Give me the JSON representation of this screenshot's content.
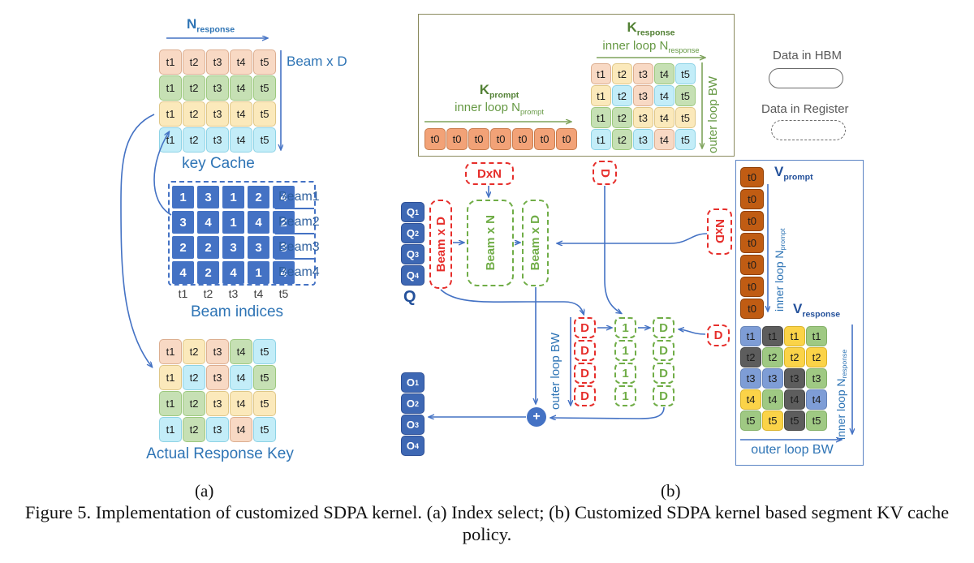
{
  "figure": {
    "caption": "Figure 5. Implementation of customized SDPA kernel. (a) Index select; (b) Customized SDPA kernel based segment KV cache policy.",
    "sub_a": "(a)",
    "sub_b": "(b)"
  },
  "legend": {
    "hbm_label": "Data in HBM",
    "register_label": "Data in Register"
  },
  "cell_palette": {
    "peach": {
      "bg": "#F8D9C4",
      "bd": "#DCAE90"
    },
    "lgreen": {
      "bg": "#C6E0B4",
      "bd": "#9CC87E"
    },
    "cream": {
      "bg": "#FBE9BB",
      "bd": "#DFC788"
    },
    "cyan": {
      "bg": "#C3EDF8",
      "bd": "#8ED3E6"
    },
    "korange": {
      "bg": "#F2A277",
      "bd": "#C87C4E"
    },
    "vorange": {
      "bg": "#C05C13",
      "bd": "#8F3F05"
    },
    "vblue": {
      "bg": "#7E9DD6",
      "bd": "#6583B8"
    },
    "vgray": {
      "bg": "#5D5D5D",
      "bd": "#474747"
    },
    "vyellow": {
      "bg": "#FBD348",
      "bd": "#D9B32A"
    },
    "vgreen": {
      "bg": "#9FC983",
      "bd": "#82AF66"
    }
  },
  "part_a": {
    "n_response": {
      "base": "N",
      "sub": "response"
    },
    "beam_x_d": "Beam x D",
    "key_cache": {
      "title": "key Cache",
      "cell_labels": [
        "t1",
        "t2",
        "t3",
        "t4",
        "t5"
      ],
      "row_colors": [
        "peach",
        "lgreen",
        "cream",
        "cyan"
      ]
    },
    "beam_indices": {
      "title": "Beam indices",
      "rows": [
        [
          1,
          3,
          1,
          2,
          4
        ],
        [
          3,
          4,
          1,
          4,
          2
        ],
        [
          2,
          2,
          3,
          3,
          3
        ],
        [
          4,
          2,
          4,
          1,
          4
        ]
      ],
      "row_labels": [
        "Beam1",
        "Beam2",
        "Beam3",
        "Beam4"
      ],
      "col_labels": [
        "t1",
        "t2",
        "t3",
        "t4",
        "t5"
      ]
    },
    "actual_response_key": {
      "title": "Actual Response Key",
      "cell_labels": [
        "t1",
        "t2",
        "t3",
        "t4",
        "t5"
      ],
      "cell_colors": [
        [
          "peach",
          "cream",
          "peach",
          "lgreen",
          "cyan"
        ],
        [
          "cream",
          "cyan",
          "peach",
          "cyan",
          "lgreen"
        ],
        [
          "lgreen",
          "lgreen",
          "cream",
          "cream",
          "cream"
        ],
        [
          "cyan",
          "lgreen",
          "cyan",
          "peach",
          "cyan"
        ]
      ]
    }
  },
  "part_b": {
    "k_prompt": {
      "label": {
        "base": "K",
        "sub": "prompt"
      },
      "loop": {
        "base": "inner loop N",
        "sub": "prompt"
      },
      "cells": [
        "t0",
        "t0",
        "t0",
        "t0",
        "t0",
        "t0",
        "t0"
      ]
    },
    "k_response": {
      "label": {
        "base": "K",
        "sub": "response"
      },
      "loop": {
        "base": "inner loop N",
        "sub": "response"
      },
      "outer": "outer loop BW",
      "cell_labels": [
        "t1",
        "t2",
        "t3",
        "t4",
        "t5"
      ],
      "cell_colors": [
        [
          "peach",
          "cream",
          "peach",
          "lgreen",
          "cyan"
        ],
        [
          "cream",
          "cyan",
          "peach",
          "cyan",
          "lgreen"
        ],
        [
          "lgreen",
          "lgreen",
          "cream",
          "cream",
          "cream"
        ],
        [
          "cyan",
          "lgreen",
          "cyan",
          "peach",
          "cyan"
        ]
      ]
    },
    "q_label": "Q",
    "q_blocks": [
      {
        "base": "Q",
        "sub": "1"
      },
      {
        "base": "Q",
        "sub": "2"
      },
      {
        "base": "Q",
        "sub": "3"
      },
      {
        "base": "Q",
        "sub": "4"
      }
    ],
    "o_blocks": [
      {
        "base": "O",
        "sub": "1"
      },
      {
        "base": "O",
        "sub": "2"
      },
      {
        "base": "O",
        "sub": "3"
      },
      {
        "base": "O",
        "sub": "4"
      }
    ],
    "beam_x_d_red": "Beam x D",
    "beam_x_n": "Beam x N",
    "beam_x_d_green": "Beam x D",
    "dxn": "DxN",
    "d_top": "D",
    "nxd": "NxD",
    "d_right": "D",
    "outer_loop_bw": "outer loop BW",
    "d_col": [
      "D",
      "D",
      "D",
      "D"
    ],
    "one_col": [
      "1",
      "1",
      "1",
      "1"
    ],
    "d2_col": [
      "D",
      "D",
      "D",
      "D"
    ],
    "plus": "+",
    "v_prompt": {
      "label": {
        "base": "V",
        "sub": "prompt"
      },
      "loop": {
        "base": "inner loop N",
        "sub": "prompt"
      },
      "cells": [
        "t0",
        "t0",
        "t0",
        "t0",
        "t0",
        "t0",
        "t0"
      ]
    },
    "v_response": {
      "label": {
        "base": "V",
        "sub": "response"
      },
      "loop": {
        "base": "inner loop N",
        "sub": "response"
      },
      "outer": "outer loop BW",
      "cell_labels": [
        "t1",
        "t2",
        "t3",
        "t4",
        "t5"
      ],
      "cell_colors": [
        [
          "vblue",
          "vgray",
          "vyellow",
          "vgreen"
        ],
        [
          "vgray",
          "vgreen",
          "vyellow",
          "vyellow"
        ],
        [
          "vblue",
          "vblue",
          "vgray",
          "vgreen"
        ],
        [
          "vyellow",
          "vgreen",
          "vgray",
          "vblue"
        ],
        [
          "vgreen",
          "vyellow",
          "vgray",
          "vgreen"
        ]
      ]
    }
  }
}
